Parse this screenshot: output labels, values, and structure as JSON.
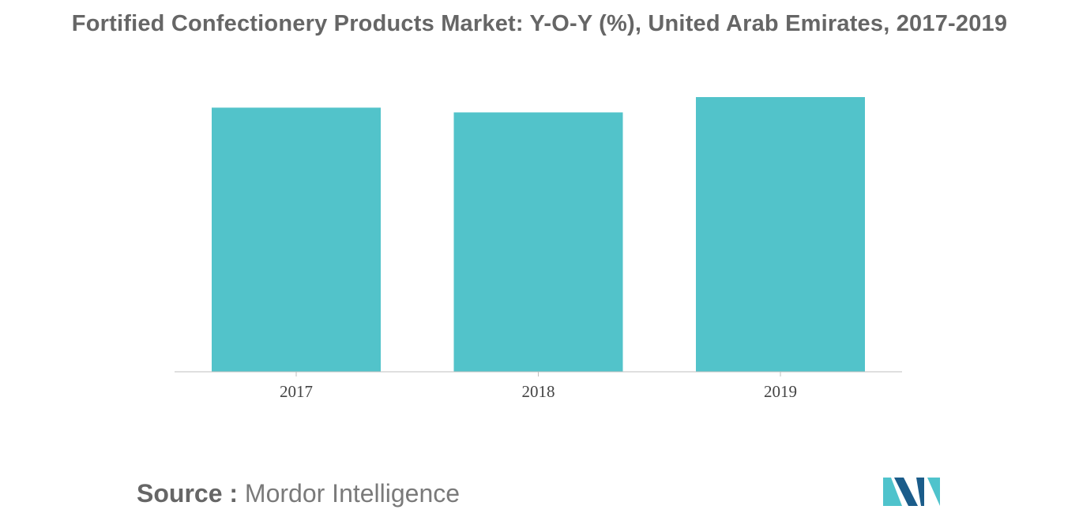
{
  "chart_data": {
    "type": "bar",
    "title": "Fortified Confectionery Products Market: Y-O-Y (%), United Arab Emirates, 2017-2019",
    "categories": [
      "2017",
      "2018",
      "2019"
    ],
    "values": [
      10.0,
      9.82,
      10.4
    ],
    "ylim": [
      0,
      10.4
    ],
    "xlabel": "",
    "ylabel": "",
    "grid": false,
    "legend": "none",
    "bar_color": "#52C3CA"
  },
  "source": {
    "label": "Source :",
    "value": "Mordor Intelligence"
  },
  "logo": {
    "icon": "mordor-intelligence-logo-icon",
    "colors": [
      "#1B5C8A",
      "#4FC3CC"
    ]
  }
}
